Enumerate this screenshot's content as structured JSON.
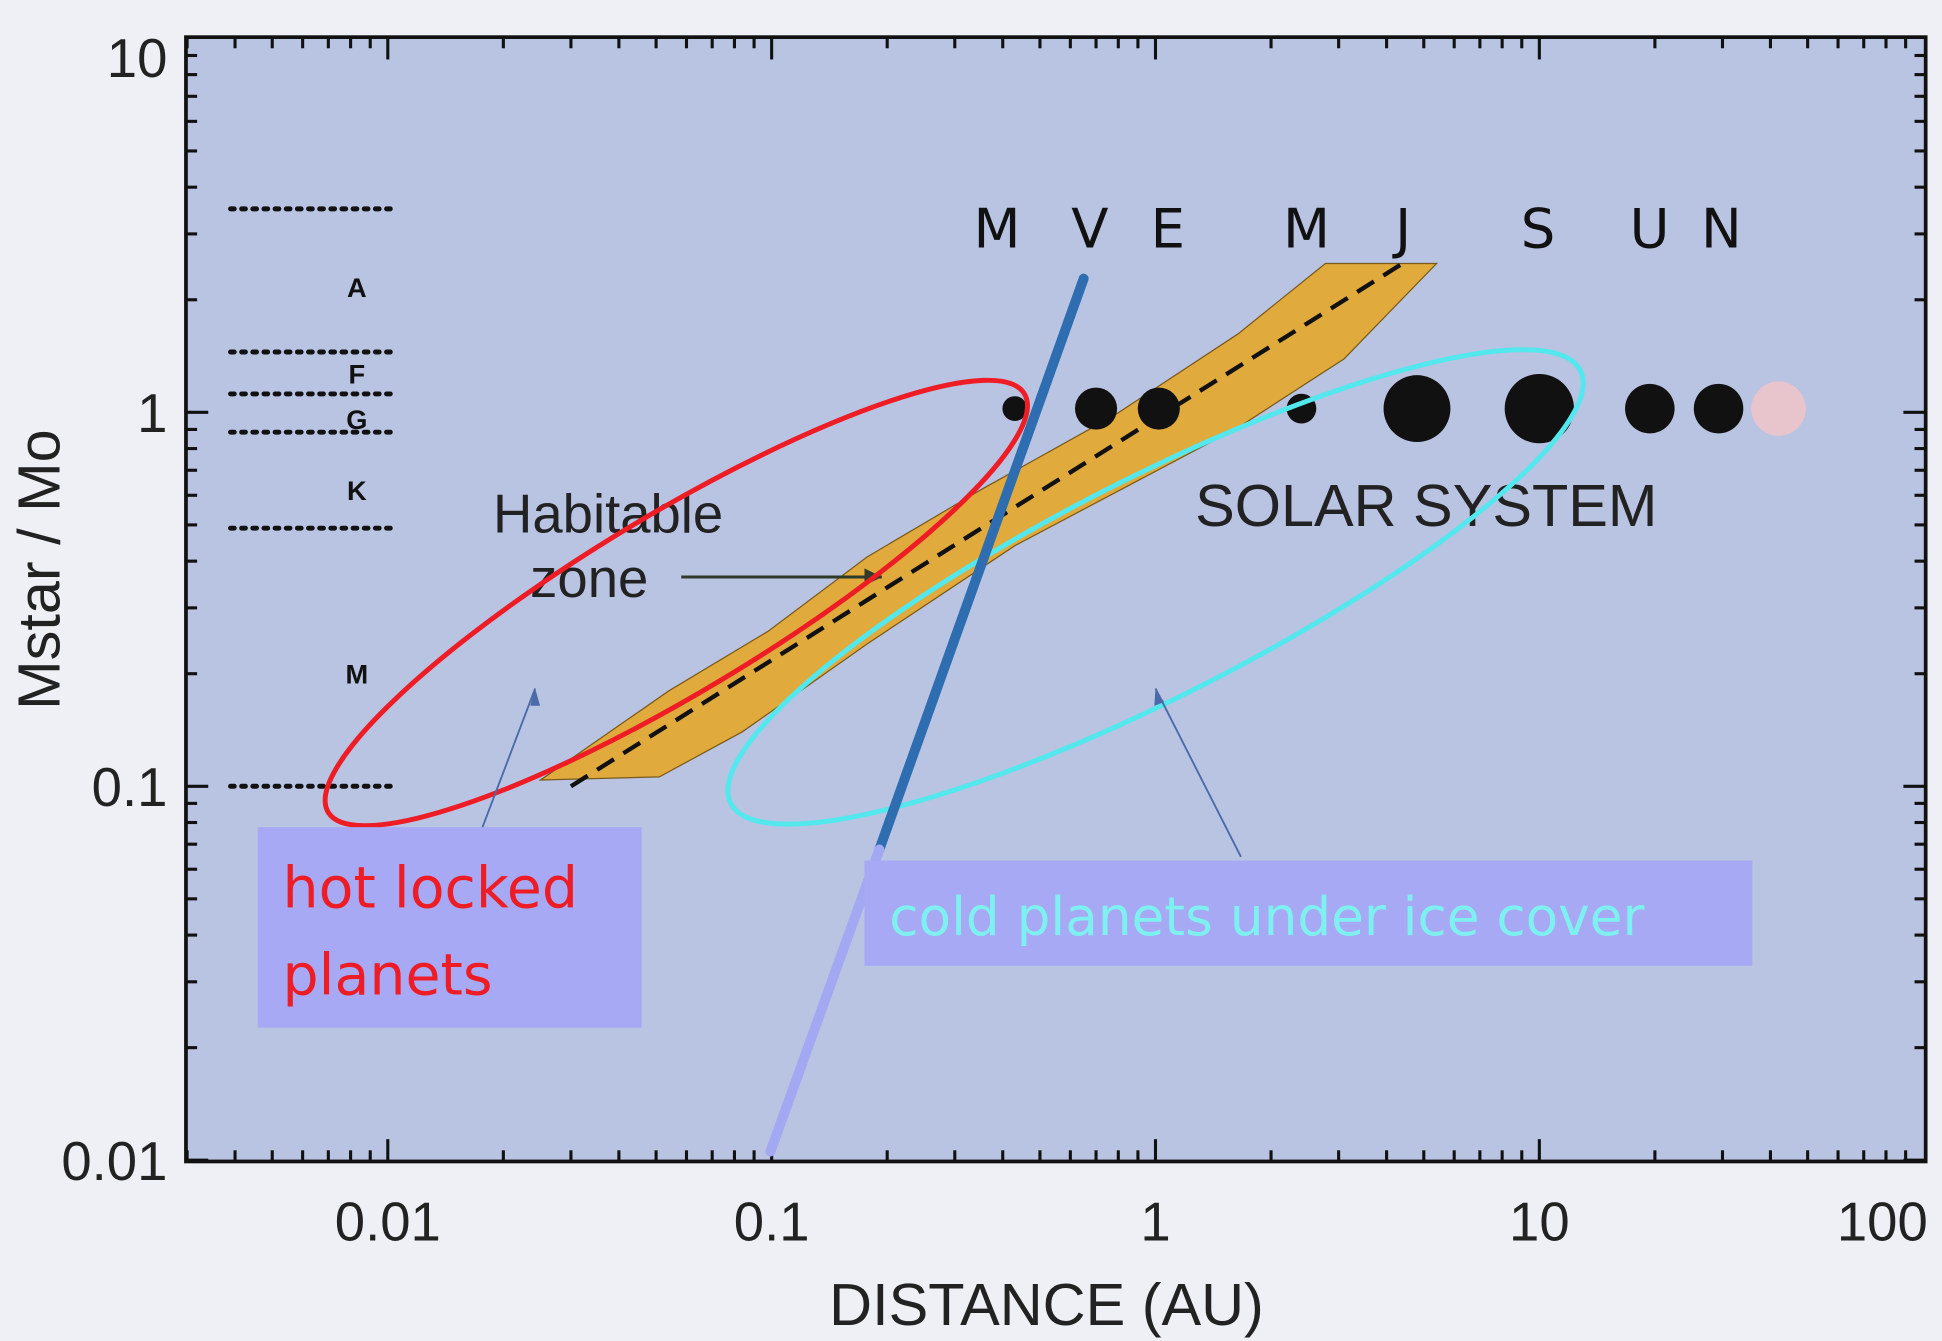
{
  "chart_data": {
    "type": "scatter",
    "xlabel": "DISTANCE (AU)",
    "ylabel": "Mstar / Mo",
    "xscale": "log",
    "yscale": "log",
    "xlim": [
      0.003,
      100
    ],
    "ylim": [
      0.01,
      10
    ],
    "xticks": [
      {
        "v": 0.01,
        "label": "0.01"
      },
      {
        "v": 0.1,
        "label": "0.1"
      },
      {
        "v": 1,
        "label": "1"
      },
      {
        "v": 10,
        "label": "10"
      },
      {
        "v": 100,
        "label": "100"
      }
    ],
    "yticks": [
      {
        "v": 10,
        "label": "10"
      },
      {
        "v": 1,
        "label": "1"
      },
      {
        "v": 0.1,
        "label": "0.1"
      },
      {
        "v": 0.01,
        "label": "0.01"
      }
    ],
    "grid": false,
    "colors": {
      "plot_bg": "#b9c3e2",
      "habitable_zone": "#e0aa3c",
      "hot_ellipse": "#ee1c24",
      "cold_ellipse": "#52e8ee",
      "divider_dark": "#2e6db0",
      "divider_light": "#a3a8f2",
      "label_box": "#a7a9f4",
      "hot_text": "#ee1c24",
      "cold_text": "#7ff0f0"
    },
    "stellar_types": {
      "boundaries": [
        3.5,
        1.45,
        1.12,
        0.885,
        0.49,
        0.1
      ],
      "labels": [
        {
          "text": "A",
          "m": 2.16
        },
        {
          "text": "F",
          "m": 1.27
        },
        {
          "text": "G",
          "m": 0.96
        },
        {
          "text": "K",
          "m": 0.62
        },
        {
          "text": "M",
          "m": 0.2
        }
      ]
    },
    "solar_system": {
      "label": "SOLAR SYSTEM",
      "mass": 1,
      "planets": [
        {
          "label": "M",
          "distance": 0.43,
          "color": "#111111"
        },
        {
          "label": "V",
          "distance": 0.7,
          "color": "#111111"
        },
        {
          "label": "E",
          "distance": 1.02,
          "color": "#111111"
        },
        {
          "label": "M",
          "distance": 2.4,
          "color": "#111111"
        },
        {
          "label": "J",
          "distance": 4.8,
          "color": "#111111"
        },
        {
          "label": "S",
          "distance": 10,
          "color": "#111111"
        },
        {
          "label": "U",
          "distance": 19.4,
          "color": "#111111"
        },
        {
          "label": "N",
          "distance": 29.3,
          "color": "#111111"
        },
        {
          "label": "",
          "distance": 42,
          "color": "#e8c4cc"
        }
      ]
    },
    "habitable_zone": {
      "label_line1": "Habitable",
      "label_line2": "zone",
      "band": [
        [
          0.025,
          0.104
        ],
        [
          0.051,
          0.106
        ],
        [
          0.084,
          0.14
        ],
        [
          0.177,
          0.24
        ],
        [
          0.43,
          0.44
        ],
        [
          1.64,
          0.91
        ],
        [
          3.1,
          1.39
        ],
        [
          5.4,
          2.5
        ],
        [
          2.77,
          2.5
        ],
        [
          1.64,
          1.62
        ],
        [
          0.78,
          0.98
        ],
        [
          0.35,
          0.62
        ],
        [
          0.177,
          0.41
        ],
        [
          0.098,
          0.26
        ],
        [
          0.054,
          0.18
        ]
      ],
      "center_line": [
        [
          0.03,
          0.1
        ],
        [
          4.4,
          2.5
        ]
      ]
    },
    "annotations": {
      "hot_line1": "hot locked",
      "hot_line2": "planets",
      "cold": "cold planets under ice cover"
    }
  }
}
